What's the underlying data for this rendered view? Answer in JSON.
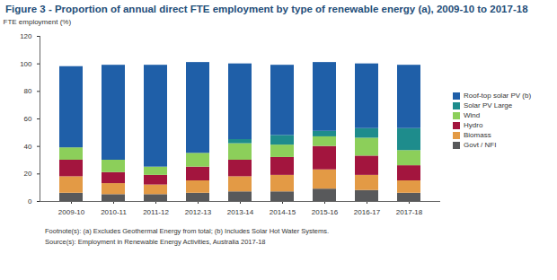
{
  "chart_data": {
    "type": "bar",
    "title": "Figure 3 - Proportion of annual direct FTE employment by type of renewable energy (a), 2009-10 to 2017-18",
    "y_label": "FTE employment (%)",
    "footnote": "Footnote(s): (a) Excludes Geothermal Energy from total; (b) Includes Solar Hot Water Systems.",
    "source": "Source(s): Employment in Renewable Energy Activities, Australia 2017-18",
    "categories": [
      "2009-10",
      "2010-11",
      "2011-12",
      "2012-13",
      "2013-14",
      "2014-15",
      "2015-16",
      "2016-17",
      "2017-18"
    ],
    "series": [
      {
        "name": "Roof-top solar PV (b)",
        "color": "#1f5fa8",
        "values": [
          59,
          69,
          74,
          66,
          55,
          51,
          50,
          47,
          46
        ]
      },
      {
        "name": "Solar PV Large",
        "color": "#1e8c8c",
        "values": [
          0,
          0,
          0,
          0,
          3,
          7,
          4,
          7,
          16
        ]
      },
      {
        "name": "Wind",
        "color": "#8ccf5a",
        "values": [
          9,
          9,
          6,
          10,
          12,
          9,
          7,
          13,
          11
        ]
      },
      {
        "name": "Hydro",
        "color": "#a3153e",
        "values": [
          12,
          8,
          7,
          10,
          12,
          13,
          17,
          14,
          11
        ]
      },
      {
        "name": "Biomass",
        "color": "#e39a45",
        "values": [
          12,
          8,
          7,
          9,
          11,
          12,
          14,
          11,
          9
        ]
      },
      {
        "name": "Govt / NFI",
        "color": "#58595b",
        "values": [
          6,
          5,
          5,
          6,
          7,
          7,
          9,
          8,
          6
        ]
      }
    ],
    "stacked": true,
    "ylim": [
      0,
      120
    ],
    "yticks": [
      0,
      20,
      40,
      60,
      80,
      100,
      120
    ],
    "grid": false,
    "legend": "right",
    "data_labels": false
  }
}
